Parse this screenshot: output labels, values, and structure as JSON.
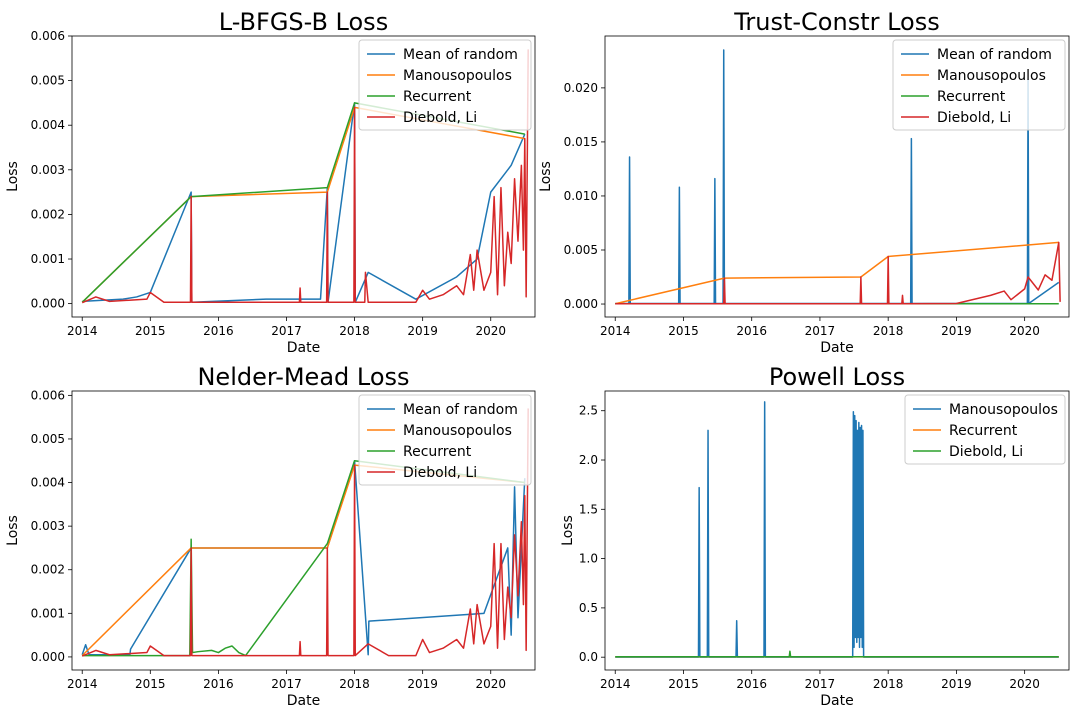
{
  "colors": {
    "blue": "#1f77b4",
    "orange": "#ff7f0e",
    "green": "#2ca02c",
    "red": "#d62728"
  },
  "chart_data": [
    {
      "type": "line",
      "title": "L-BFGS-B Loss",
      "xlabel": "Date",
      "ylabel": "Loss",
      "xlim": [
        2013.85,
        2020.65
      ],
      "ylim": [
        -0.0003,
        0.006
      ],
      "xticks": [
        2014,
        2015,
        2016,
        2017,
        2018,
        2019,
        2020
      ],
      "xtick_labels": [
        "2014",
        "2015",
        "2016",
        "2017",
        "2018",
        "2019",
        "2020"
      ],
      "yticks": [
        0,
        0.001,
        0.002,
        0.003,
        0.004,
        0.005,
        0.006
      ],
      "ytick_labels": [
        "0.000",
        "0.001",
        "0.002",
        "0.003",
        "0.004",
        "0.005",
        "0.006"
      ],
      "legend_position": "top-right",
      "grid": false,
      "series": [
        {
          "name": "Mean of random",
          "color": "blue",
          "x": [
            2014.0,
            2014.6,
            2014.8,
            2015.0,
            2015.6,
            2015.61,
            2016.7,
            2017.2,
            2017.5,
            2017.6,
            2017.61,
            2018.0,
            2018.01,
            2018.2,
            2018.9,
            2019.5,
            2019.8,
            2020.0,
            2020.3,
            2020.5
          ],
          "y": [
            5e-05,
            0.0001,
            0.00015,
            0.00025,
            0.0025,
            3e-05,
            0.0001,
            0.0001,
            0.0001,
            0.0026,
            3e-05,
            0.0045,
            3e-05,
            0.0007,
            0.0001,
            0.0006,
            0.001,
            0.0025,
            0.0031,
            0.0038
          ]
        },
        {
          "name": "Manousopoulos",
          "color": "orange",
          "x": [
            2014.0,
            2015.6,
            2017.6,
            2018.0,
            2020.5
          ],
          "y": [
            3e-05,
            0.0024,
            0.0025,
            0.0044,
            0.0037
          ]
        },
        {
          "name": "Recurrent",
          "color": "green",
          "x": [
            2014.0,
            2015.6,
            2017.6,
            2018.0,
            2020.5
          ],
          "y": [
            3e-05,
            0.0024,
            0.0026,
            0.0045,
            0.0038
          ]
        },
        {
          "name": "Diebold, Li",
          "color": "red",
          "x": [
            2014.0,
            2014.2,
            2014.4,
            2014.95,
            2015.0,
            2015.2,
            2015.59,
            2015.6,
            2015.61,
            2016.0,
            2016.5,
            2017.19,
            2017.2,
            2017.21,
            2017.59,
            2017.6,
            2017.61,
            2017.99,
            2018.0,
            2018.01,
            2018.15,
            2018.16,
            2018.2,
            2018.5,
            2018.9,
            2019.0,
            2019.1,
            2019.3,
            2019.5,
            2019.6,
            2019.7,
            2019.75,
            2019.8,
            2019.9,
            2020.0,
            2020.05,
            2020.1,
            2020.15,
            2020.2,
            2020.25,
            2020.3,
            2020.35,
            2020.4,
            2020.45,
            2020.48,
            2020.5,
            2020.52,
            2020.55
          ],
          "y": [
            2e-05,
            0.00015,
            5e-05,
            0.0001,
            0.00025,
            3e-05,
            3e-05,
            0.0024,
            3e-05,
            3e-05,
            3e-05,
            3e-05,
            0.00035,
            3e-05,
            3e-05,
            0.0025,
            3e-05,
            3e-05,
            0.0044,
            3e-05,
            3e-05,
            0.0007,
            3e-05,
            3e-05,
            3e-05,
            0.0003,
            0.0001,
            0.0002,
            0.0004,
            0.0002,
            0.0011,
            0.0003,
            0.0012,
            0.0003,
            0.0007,
            0.0024,
            0.0002,
            0.0026,
            0.0004,
            0.0016,
            0.0009,
            0.0028,
            0.0014,
            0.0031,
            0.0012,
            0.0037,
            0.00015,
            0.0057
          ]
        }
      ]
    },
    {
      "type": "line",
      "title": "Trust-Constr Loss",
      "xlabel": "Date",
      "ylabel": "Loss",
      "xlim": [
        2013.85,
        2020.65
      ],
      "ylim": [
        -0.0012,
        0.0248
      ],
      "xticks": [
        2014,
        2015,
        2016,
        2017,
        2018,
        2019,
        2020
      ],
      "xtick_labels": [
        "2014",
        "2015",
        "2016",
        "2017",
        "2018",
        "2019",
        "2020"
      ],
      "yticks": [
        0,
        0.005,
        0.01,
        0.015,
        0.02
      ],
      "ytick_labels": [
        "0.000",
        "0.005",
        "0.010",
        "0.015",
        "0.020"
      ],
      "legend_position": "top-right",
      "grid": false,
      "series": [
        {
          "name": "Mean of random",
          "color": "blue",
          "x": [
            2014.0,
            2014.2,
            2014.21,
            2014.22,
            2014.93,
            2014.94,
            2014.95,
            2015.45,
            2015.46,
            2015.47,
            2015.58,
            2015.59,
            2015.6,
            2018.33,
            2018.34,
            2018.35,
            2020.04,
            2020.05,
            2020.06,
            2020.5
          ],
          "y": [
            5e-05,
            5e-05,
            0.0136,
            5e-05,
            5e-05,
            0.0108,
            5e-05,
            5e-05,
            0.0116,
            5e-05,
            5e-05,
            0.0235,
            5e-05,
            5e-05,
            0.0153,
            5e-05,
            5e-05,
            0.0208,
            5e-05,
            0.002
          ]
        },
        {
          "name": "Manousopoulos",
          "color": "orange",
          "x": [
            2014.0,
            2015.6,
            2017.6,
            2018.0,
            2020.5
          ],
          "y": [
            3e-05,
            0.0024,
            0.0025,
            0.0044,
            0.0057
          ]
        },
        {
          "name": "Recurrent",
          "color": "green",
          "x": [
            2014.0,
            2020.5
          ],
          "y": [
            3e-05,
            3e-05
          ]
        },
        {
          "name": "Diebold, Li",
          "color": "red",
          "x": [
            2014.0,
            2015.59,
            2015.6,
            2015.61,
            2017.59,
            2017.6,
            2017.61,
            2017.99,
            2018.0,
            2018.01,
            2018.2,
            2018.21,
            2018.22,
            2019.0,
            2019.5,
            2019.7,
            2019.8,
            2020.0,
            2020.05,
            2020.2,
            2020.3,
            2020.4,
            2020.5,
            2020.52
          ],
          "y": [
            3e-05,
            3e-05,
            0.0024,
            3e-05,
            3e-05,
            0.0025,
            3e-05,
            3e-05,
            0.0044,
            3e-05,
            3e-05,
            0.0008,
            3e-05,
            5e-05,
            0.0008,
            0.0012,
            0.0004,
            0.0014,
            0.0025,
            0.0013,
            0.0027,
            0.0022,
            0.0057,
            0.0002
          ]
        }
      ]
    },
    {
      "type": "line",
      "title": "Nelder-Mead Loss",
      "xlabel": "Date",
      "ylabel": "Loss",
      "xlim": [
        2013.85,
        2020.65
      ],
      "ylim": [
        -0.0003,
        0.0061
      ],
      "xticks": [
        2014,
        2015,
        2016,
        2017,
        2018,
        2019,
        2020
      ],
      "xtick_labels": [
        "2014",
        "2015",
        "2016",
        "2017",
        "2018",
        "2019",
        "2020"
      ],
      "yticks": [
        0,
        0.001,
        0.002,
        0.003,
        0.004,
        0.005,
        0.006
      ],
      "ytick_labels": [
        "0.000",
        "0.001",
        "0.002",
        "0.003",
        "0.004",
        "0.005",
        "0.006"
      ],
      "legend_position": "top-right",
      "grid": false,
      "series": [
        {
          "name": "Mean of random",
          "color": "blue",
          "x": [
            2014.0,
            2014.05,
            2014.1,
            2014.7,
            2014.71,
            2015.6,
            2017.6,
            2018.0,
            2018.2,
            2018.21,
            2019.9,
            2020.25,
            2020.3,
            2020.35,
            2020.4,
            2020.5
          ],
          "y": [
            5e-05,
            0.00028,
            5e-05,
            5e-05,
            0.00018,
            0.0025,
            0.0025,
            0.0045,
            5e-05,
            0.00082,
            0.001,
            0.0025,
            0.0005,
            0.0039,
            0.0009,
            0.0041
          ]
        },
        {
          "name": "Manousopoulos",
          "color": "orange",
          "x": [
            2014.0,
            2015.6,
            2017.6,
            2018.0,
            2020.5
          ],
          "y": [
            3e-05,
            0.0025,
            0.0025,
            0.0044,
            0.004
          ]
        },
        {
          "name": "Recurrent",
          "color": "green",
          "x": [
            2014.0,
            2015.58,
            2015.6,
            2015.62,
            2015.7,
            2015.9,
            2016.0,
            2016.1,
            2016.2,
            2016.3,
            2016.4,
            2017.6,
            2018.0,
            2020.5
          ],
          "y": [
            3e-05,
            3e-05,
            0.0027,
            0.0001,
            0.00012,
            0.00015,
            0.0001,
            0.0002,
            0.00025,
            0.0001,
            3e-05,
            0.0026,
            0.0045,
            0.004
          ]
        },
        {
          "name": "Diebold, Li",
          "color": "red",
          "x": [
            2014.0,
            2014.2,
            2014.4,
            2014.95,
            2015.0,
            2015.2,
            2015.59,
            2015.6,
            2015.61,
            2016.0,
            2016.5,
            2017.19,
            2017.2,
            2017.21,
            2017.59,
            2017.6,
            2017.61,
            2017.99,
            2018.0,
            2018.01,
            2018.2,
            2018.5,
            2018.9,
            2019.0,
            2019.1,
            2019.3,
            2019.5,
            2019.6,
            2019.7,
            2019.75,
            2019.8,
            2019.9,
            2020.0,
            2020.05,
            2020.1,
            2020.15,
            2020.2,
            2020.25,
            2020.3,
            2020.35,
            2020.4,
            2020.45,
            2020.48,
            2020.5,
            2020.52,
            2020.55
          ],
          "y": [
            2e-05,
            0.00015,
            5e-05,
            0.0001,
            0.00025,
            3e-05,
            3e-05,
            0.0025,
            3e-05,
            3e-05,
            3e-05,
            3e-05,
            0.00035,
            3e-05,
            3e-05,
            0.0025,
            3e-05,
            3e-05,
            0.0044,
            3e-05,
            0.0003,
            3e-05,
            3e-05,
            0.0004,
            0.0001,
            0.0002,
            0.0004,
            0.0002,
            0.0011,
            0.0003,
            0.0012,
            0.0003,
            0.0007,
            0.0026,
            0.0002,
            0.0026,
            0.0004,
            0.0016,
            0.0009,
            0.0028,
            0.0014,
            0.0031,
            0.0012,
            0.0037,
            0.00015,
            0.0057
          ]
        }
      ]
    },
    {
      "type": "line",
      "title": "Powell Loss",
      "xlabel": "Date",
      "ylabel": "Loss",
      "xlim": [
        2013.85,
        2020.65
      ],
      "ylim": [
        -0.13,
        2.7
      ],
      "xticks": [
        2014,
        2015,
        2016,
        2017,
        2018,
        2019,
        2020
      ],
      "xtick_labels": [
        "2014",
        "2015",
        "2016",
        "2017",
        "2018",
        "2019",
        "2020"
      ],
      "yticks": [
        0,
        0.5,
        1.0,
        1.5,
        2.0,
        2.5
      ],
      "ytick_labels": [
        "0.0",
        "0.5",
        "1.0",
        "1.5",
        "2.0",
        "2.5"
      ],
      "legend_position": "top-right",
      "grid": false,
      "series": [
        {
          "name": "Manousopoulos",
          "color": "blue",
          "x": [
            2014.0,
            2015.22,
            2015.23,
            2015.24,
            2015.35,
            2015.36,
            2015.37,
            2015.77,
            2015.78,
            2015.79,
            2016.18,
            2016.19,
            2016.2,
            2017.48,
            2017.49,
            2017.5,
            2017.51,
            2017.52,
            2017.53,
            2017.54,
            2017.55,
            2017.56,
            2017.57,
            2017.58,
            2017.59,
            2017.6,
            2017.61,
            2017.62,
            2017.63,
            2017.64,
            2017.65,
            2020.5
          ],
          "y": [
            0.0,
            0.0,
            1.72,
            0.0,
            0.0,
            2.3,
            0.0,
            0.0,
            0.37,
            0.0,
            0.0,
            2.59,
            0.0,
            0.0,
            2.49,
            0.1,
            2.45,
            0.2,
            2.4,
            0.15,
            2.3,
            0.2,
            2.38,
            0.1,
            2.33,
            0.2,
            2.35,
            0.1,
            2.3,
            0.0,
            0.0,
            0.0
          ]
        },
        {
          "name": "Recurrent",
          "color": "orange",
          "x": [
            2014.0,
            2020.5
          ],
          "y": [
            0.003,
            0.003
          ]
        },
        {
          "name": "Diebold, Li",
          "color": "green",
          "x": [
            2014.0,
            2016.55,
            2016.56,
            2016.57,
            2020.5
          ],
          "y": [
            0.005,
            0.005,
            0.06,
            0.005,
            0.005
          ]
        }
      ]
    }
  ]
}
